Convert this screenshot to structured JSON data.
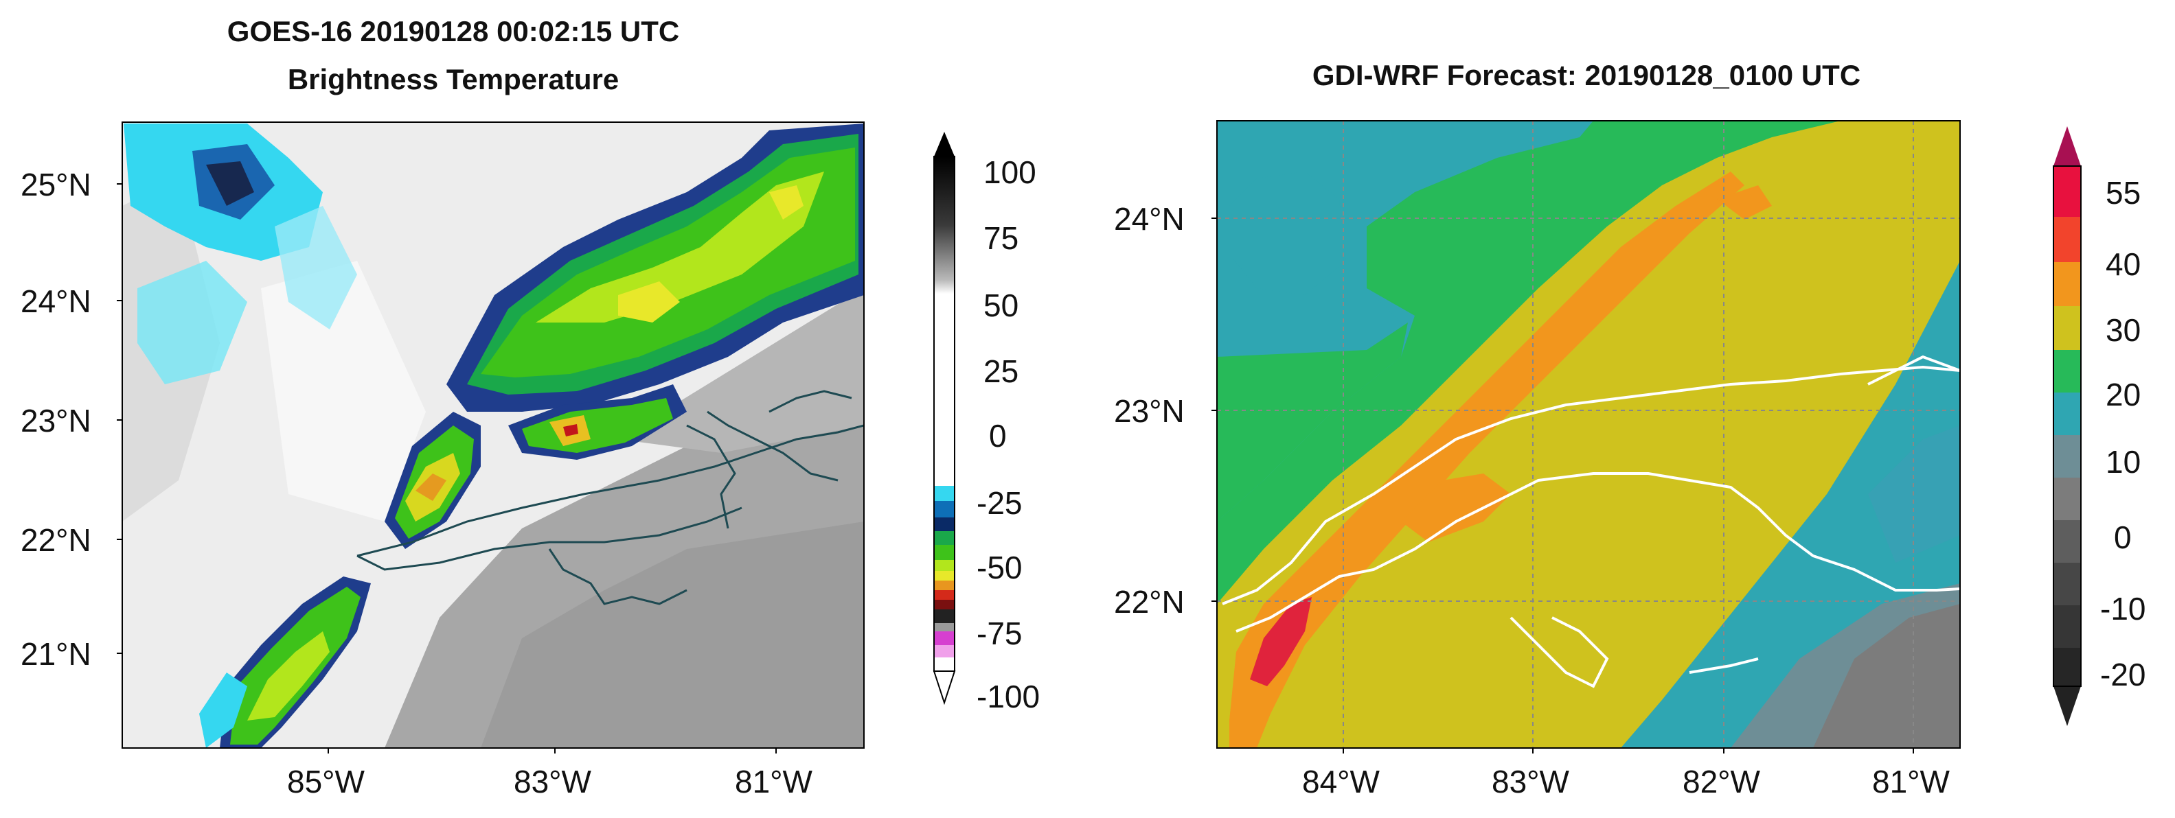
{
  "left_panel": {
    "title_line1": "GOES-16  20190128 00:02:15 UTC",
    "title_line2": "Brightness Temperature",
    "lat_labels": [
      "25°N",
      "24°N",
      "23°N",
      "22°N",
      "21°N"
    ],
    "lon_labels": [
      "85°W",
      "83°W",
      "81°W"
    ],
    "colorbar_ticks": [
      "100",
      "75",
      "50",
      "25",
      "0",
      "-25",
      "-50",
      "-75",
      "-100"
    ]
  },
  "right_panel": {
    "title": "GDI-WRF  Forecast: 20190128_0100 UTC",
    "lat_labels": [
      "24°N",
      "23°N",
      "22°N"
    ],
    "lon_labels": [
      "84°W",
      "83°W",
      "82°W",
      "81°W"
    ],
    "colorbar_ticks": [
      "55",
      "40",
      "30",
      "20",
      "10",
      "0",
      "-10",
      "-20"
    ]
  }
}
